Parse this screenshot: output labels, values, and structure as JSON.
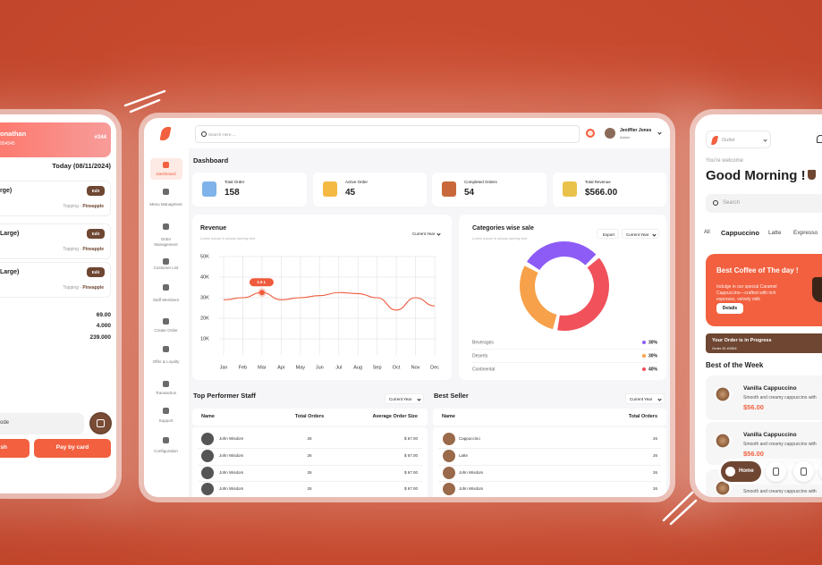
{
  "left_phone": {
    "customer_name": "onathan",
    "customer_phone": "954545",
    "order_number": "#344",
    "date": "Today (08/11/2024)",
    "items": [
      {
        "name": "rge)",
        "action": "Edit",
        "topping_label": "Topping -",
        "topping": "Pineapple"
      },
      {
        "name": "Large)",
        "action": "Edit",
        "topping_label": "Topping -",
        "topping": "Pineapple"
      },
      {
        "name": "Large)",
        "action": "Edit",
        "topping_label": "Topping -",
        "topping": "Pineapple"
      }
    ],
    "totals": [
      "69.00",
      "4.000",
      "239.000"
    ],
    "code_placeholder": "ode",
    "buttons": [
      "sh",
      "Pay by card"
    ]
  },
  "dashboard": {
    "search_placeholder": "Search Here.....",
    "user": {
      "name": "Jeniffier Jones",
      "role": "Admin"
    },
    "nav": [
      "Dashboard",
      "Menu Managment",
      "Order Management",
      "Customer List",
      "Staff Members",
      "Create Order",
      "Offer & Loyalty",
      "Transaction",
      "Support",
      "Configuration"
    ],
    "heading": "Dashboard",
    "stats": [
      {
        "label": "Total Order",
        "value": "158"
      },
      {
        "label": "Active Order",
        "value": "45"
      },
      {
        "label": "Completed Orders",
        "value": "54"
      },
      {
        "label": "Total Revenue",
        "value": "$566.00"
      }
    ],
    "revenue_chart": {
      "type": "line",
      "title": "Revenue",
      "subtitle": "Lorem ipsum is simply dummy text",
      "filter": "Current Year",
      "categories": [
        "Jan",
        "Feb",
        "Mar",
        "Apr",
        "May",
        "Jun",
        "Jul",
        "Aug",
        "Sep",
        "Oct",
        "Nov",
        "Dec"
      ],
      "values": [
        29000,
        30000,
        32500,
        29000,
        30000,
        31000,
        32500,
        32000,
        30000,
        24000,
        30000,
        26000
      ],
      "color": "#ef5a3c",
      "ylim": [
        0,
        50000
      ],
      "yticks": [
        {
          "value": 10000,
          "label": "10K"
        },
        {
          "value": 20000,
          "label": "20K"
        },
        {
          "value": 30000,
          "label": "30K"
        },
        {
          "value": 40000,
          "label": "40K"
        },
        {
          "value": 50000,
          "label": "50K"
        }
      ],
      "grid": true,
      "annotation": "1.5 L"
    },
    "category_chart": {
      "type": "pie",
      "title": "Categories wise sale",
      "subtitle": "Lorem ipsum is simply dummy text",
      "export": "Export",
      "filter": "Current Year",
      "categories": [
        "Beverages",
        "Deserts",
        "Continental"
      ],
      "values": [
        30,
        30,
        40
      ],
      "value_labels": [
        "30%",
        "30%",
        "40%"
      ],
      "colors": [
        "#8d5cf6",
        "#f7a14a",
        "#f0515a"
      ]
    },
    "staff_table": {
      "title": "Top Performer Staff",
      "filter": "Current Year",
      "columns": [
        "Name",
        "Total Orders",
        "Average Order Size"
      ],
      "rows": [
        [
          "John Wisdom",
          "26",
          "$ 67.00"
        ],
        [
          "John Wisdom",
          "26",
          "$ 67.00"
        ],
        [
          "John Wisdom",
          "26",
          "$ 67.00"
        ],
        [
          "John Wisdom",
          "26",
          "$ 67.00"
        ]
      ]
    },
    "best_seller": {
      "title": "Best Seller",
      "filter": "Current Year",
      "columns": [
        "Name",
        "Total Orders"
      ],
      "rows": [
        [
          "Cappuccino",
          "26"
        ],
        [
          "Latte",
          "26"
        ],
        [
          "John Wisdom",
          "26"
        ],
        [
          "John Wisdom",
          "26"
        ]
      ]
    }
  },
  "mobile_app": {
    "outlet": "Outlet",
    "welcome": "You're welcome",
    "greeting": "Good Morning !",
    "search_placeholder": "Search",
    "tabs": [
      "All",
      "Cappuccino",
      "Latte",
      "Expresso"
    ],
    "banner": {
      "title": "Best Coffee of  The day !",
      "text": "Indulge in our special Caramel Cappuccino—crafted with rich espresso, velvety milk",
      "button": "Details"
    },
    "order_status": {
      "title": "Your Order is in Progress",
      "order_id": "Order ID #4354"
    },
    "section_title": "Best of the Week",
    "products": [
      {
        "name": "Vanilla Cappuccino",
        "description": "Smooth and creamy cappuccino with",
        "price": "$56.00"
      },
      {
        "name": "Vanilla Cappuccino",
        "description": "Smooth and creamy cappuccino with",
        "price": "$56.00"
      },
      {
        "description": "Smooth and creamy cappuccino with"
      }
    ],
    "nav": [
      "Home"
    ]
  }
}
